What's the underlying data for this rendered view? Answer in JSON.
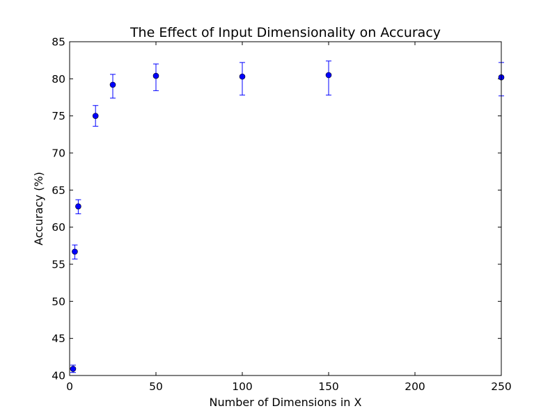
{
  "chart_data": {
    "type": "scatter",
    "title": "The Effect of Input Dimensionality on Accuracy",
    "xlabel": "Number of Dimensions in X",
    "ylabel": "Accuracy (%)",
    "xlim": [
      0,
      250
    ],
    "ylim": [
      40,
      85
    ],
    "xticks": [
      0,
      50,
      100,
      150,
      200,
      250
    ],
    "yticks": [
      40,
      45,
      50,
      55,
      60,
      65,
      70,
      75,
      80,
      85
    ],
    "grid": false,
    "legend": "none",
    "point_color": "#0000ff",
    "errorbar_color": "#0000ff",
    "points": [
      {
        "x": 2,
        "y": 40.9,
        "yerr_low": 0.5,
        "yerr_high": 0.5
      },
      {
        "x": 3,
        "y": 56.7,
        "yerr_low": 1.0,
        "yerr_high": 0.9
      },
      {
        "x": 5,
        "y": 62.8,
        "yerr_low": 1.0,
        "yerr_high": 0.9
      },
      {
        "x": 15,
        "y": 75.0,
        "yerr_low": 1.4,
        "yerr_high": 1.4
      },
      {
        "x": 25,
        "y": 79.2,
        "yerr_low": 1.8,
        "yerr_high": 1.4
      },
      {
        "x": 50,
        "y": 80.4,
        "yerr_low": 2.0,
        "yerr_high": 1.6
      },
      {
        "x": 100,
        "y": 80.3,
        "yerr_low": 2.5,
        "yerr_high": 1.9
      },
      {
        "x": 150,
        "y": 80.5,
        "yerr_low": 2.7,
        "yerr_high": 1.9
      },
      {
        "x": 250,
        "y": 80.2,
        "yerr_low": 2.5,
        "yerr_high": 2.0
      }
    ]
  }
}
